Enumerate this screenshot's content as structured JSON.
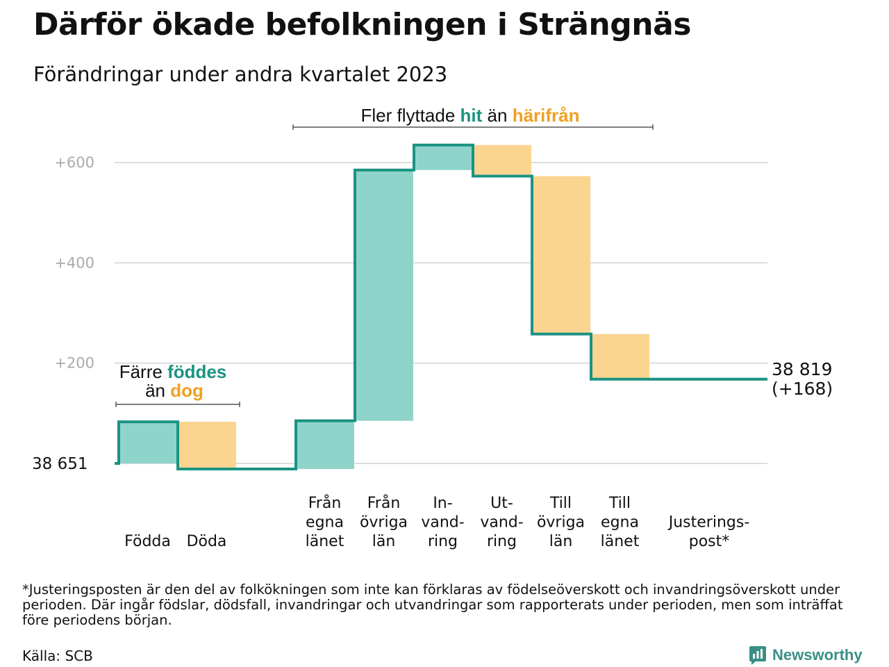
{
  "title": "Därför ökade befolkningen i Strängnäs",
  "subtitle": "Förändringar under andra kvartalet 2023",
  "colors": {
    "increase_fill": "#8fd4cb",
    "decrease_fill": "#fbd58f",
    "line": "#1a9383",
    "hit_text": "#1a9383",
    "harifran_text": "#f0a020",
    "brand": "#3a8f86"
  },
  "annotations": {
    "births_deaths": {
      "line1_pre": "Färre ",
      "line1_hi": "föddes",
      "line2_pre": "än ",
      "line2_hi": "dog"
    },
    "migration": {
      "pre": "Fler flyttade ",
      "hi1": "hit",
      "mid": " än ",
      "hi2": "härifrån"
    }
  },
  "chart_data": {
    "type": "waterfall",
    "base_value": 38651,
    "start_label": "38  651",
    "end_label_line1": "38 819",
    "end_label_line2": "(+168)",
    "y_ticks": [
      "+200",
      "+400",
      "+600"
    ],
    "ylim": [
      0,
      640
    ],
    "grid": true,
    "steps": [
      {
        "label_lines": [
          "Födda"
        ],
        "change": 83,
        "kind": "increase"
      },
      {
        "label_lines": [
          "Döda"
        ],
        "change": -94,
        "kind": "decrease"
      },
      {
        "label_lines": [],
        "change": 0,
        "kind": "none"
      },
      {
        "label_lines": [
          "Från",
          "egna",
          "länet"
        ],
        "change": 96,
        "kind": "increase"
      },
      {
        "label_lines": [
          "Från",
          "övriga",
          "län"
        ],
        "change": 500,
        "kind": "increase"
      },
      {
        "label_lines": [
          "In-",
          "vand-",
          "ring"
        ],
        "change": 50,
        "kind": "increase"
      },
      {
        "label_lines": [
          "Ut-",
          "vand-",
          "ring"
        ],
        "change": -62,
        "kind": "decrease"
      },
      {
        "label_lines": [
          "Till",
          "övriga",
          "län"
        ],
        "change": -315,
        "kind": "decrease"
      },
      {
        "label_lines": [
          "Till",
          "egna",
          "länet"
        ],
        "change": -90,
        "kind": "decrease"
      },
      {
        "label_lines": [
          "Justerings-",
          "post*"
        ],
        "change": 0,
        "kind": "adjustment"
      }
    ],
    "final_change": 168
  },
  "footnote": "*Justeringsposten är den del av folkökningen som inte kan förklaras av födelseöverskott och invandringsöverskott under perioden. Där ingår födslar, dödsfall, invandringar och utvandringar som rapporterats under perioden, men som inträffat före periodens början.",
  "source": "Källa: SCB",
  "brand": {
    "name": "Newsworthy",
    "icon": "newsworthy-logo-icon"
  }
}
